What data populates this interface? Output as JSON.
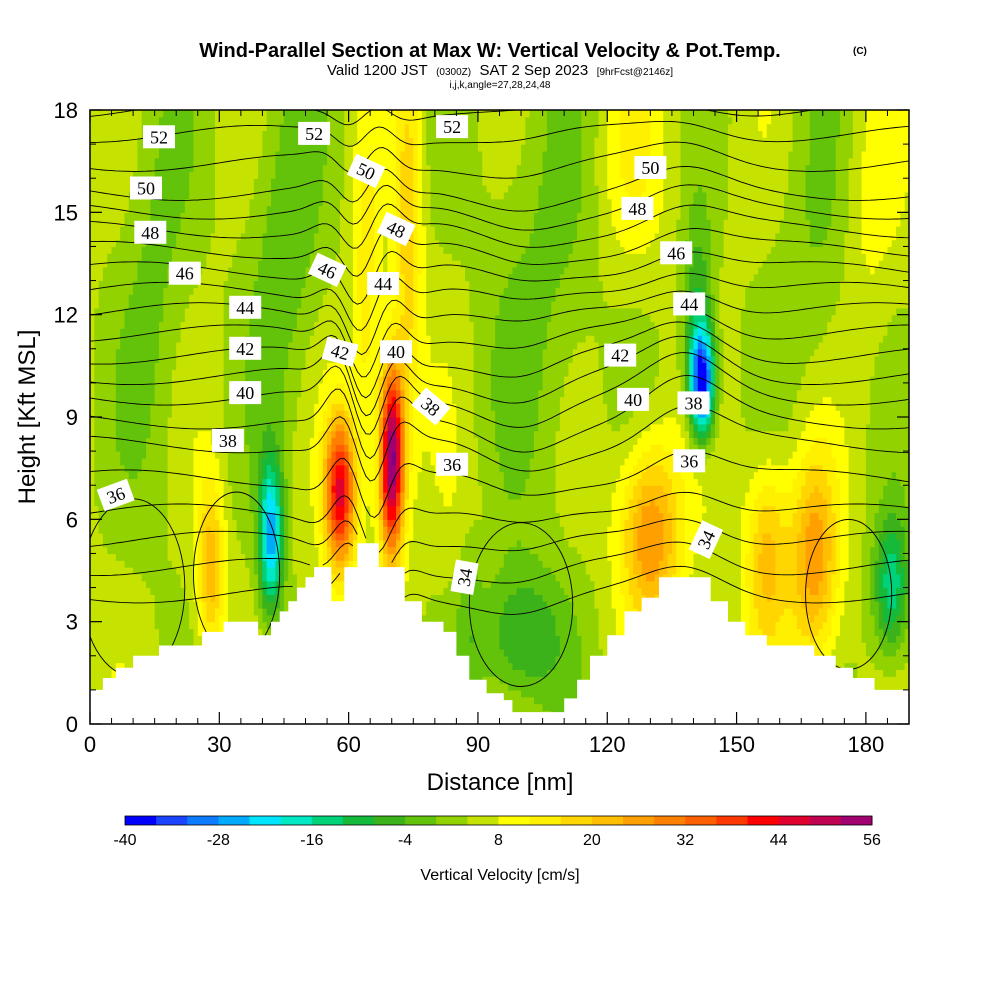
{
  "header": {
    "title": "Wind-Parallel Section at Max W: Vertical Velocity & Pot.Temp.",
    "title_mark": "(C)",
    "subtitle_a": "Valid 1200 JST",
    "subtitle_b": "(0300Z)",
    "subtitle_c": "SAT 2 Sep 2023",
    "subtitle_d": "[9hrFcst@2146z]",
    "subtitle2": "i,j,k,angle=27,28,24,48"
  },
  "chart_data": {
    "type": "heatmap",
    "description_series": "vertical velocity shading with potential temperature contours over terrain",
    "xlabel": "Distance [nm]",
    "ylabel": "Height [Kft MSL]",
    "xlim": [
      0,
      190
    ],
    "ylim": [
      0,
      18
    ],
    "xticks": [
      0,
      30,
      60,
      90,
      120,
      150,
      180
    ],
    "yticks": [
      0,
      3,
      6,
      9,
      12,
      15,
      18
    ],
    "colorbar": {
      "label": "Vertical Velocity [cm/s]",
      "min": -40,
      "max": 56,
      "step": 4,
      "tick_labels": [
        -40,
        -28,
        -16,
        -4,
        8,
        20,
        32,
        44,
        56
      ],
      "colors": [
        "#0000ff",
        "#1a44ff",
        "#0d7bff",
        "#00aaff",
        "#00e5ff",
        "#00e8c4",
        "#00d27a",
        "#16ba3a",
        "#3cb21a",
        "#63c30a",
        "#92d200",
        "#c6e200",
        "#ffff00",
        "#fff000",
        "#ffd600",
        "#ffbe00",
        "#ffa000",
        "#ff8000",
        "#ff6000",
        "#ff3800",
        "#ff0000",
        "#e00030",
        "#c00050",
        "#a00070",
        "#800080"
      ]
    },
    "terrain_kft": [
      [
        0,
        1.0
      ],
      [
        3,
        1.0
      ],
      [
        3,
        1.35
      ],
      [
        6,
        1.35
      ],
      [
        6,
        1.65
      ],
      [
        10,
        1.65
      ],
      [
        10,
        2.0
      ],
      [
        16,
        2.0
      ],
      [
        16,
        2.3
      ],
      [
        26,
        2.3
      ],
      [
        26,
        2.7
      ],
      [
        31,
        2.7
      ],
      [
        31,
        3.0
      ],
      [
        39,
        3.0
      ],
      [
        39,
        2.6
      ],
      [
        42,
        2.6
      ],
      [
        42,
        3.0
      ],
      [
        44,
        3.0
      ],
      [
        44,
        3.3
      ],
      [
        46,
        3.3
      ],
      [
        46,
        3.6
      ],
      [
        48,
        3.6
      ],
      [
        48,
        4.0
      ],
      [
        50,
        4.0
      ],
      [
        50,
        4.3
      ],
      [
        52,
        4.3
      ],
      [
        52,
        4.6
      ],
      [
        56,
        4.6
      ],
      [
        56,
        3.6
      ],
      [
        59,
        3.6
      ],
      [
        59,
        4.6
      ],
      [
        62,
        4.6
      ],
      [
        62,
        5.3
      ],
      [
        67,
        5.3
      ],
      [
        67,
        4.6
      ],
      [
        73,
        4.6
      ],
      [
        73,
        3.6
      ],
      [
        77,
        3.6
      ],
      [
        77,
        3.0
      ],
      [
        82,
        3.0
      ],
      [
        82,
        2.7
      ],
      [
        85,
        2.7
      ],
      [
        85,
        2.0
      ],
      [
        88,
        2.0
      ],
      [
        88,
        1.3
      ],
      [
        92,
        1.3
      ],
      [
        92,
        0.9
      ],
      [
        96,
        0.9
      ],
      [
        96,
        0.7
      ],
      [
        98,
        0.7
      ],
      [
        98,
        0.35
      ],
      [
        110,
        0.35
      ],
      [
        110,
        0.75
      ],
      [
        113,
        0.75
      ],
      [
        113,
        1.3
      ],
      [
        116,
        1.3
      ],
      [
        116,
        2.0
      ],
      [
        120,
        2.0
      ],
      [
        120,
        2.6
      ],
      [
        124,
        2.6
      ],
      [
        124,
        3.3
      ],
      [
        128,
        3.3
      ],
      [
        128,
        3.7
      ],
      [
        132,
        3.7
      ],
      [
        132,
        4.3
      ],
      [
        144,
        4.3
      ],
      [
        144,
        3.6
      ],
      [
        148,
        3.6
      ],
      [
        148,
        3.0
      ],
      [
        152,
        3.0
      ],
      [
        152,
        2.6
      ],
      [
        157,
        2.6
      ],
      [
        157,
        2.3
      ],
      [
        168,
        2.3
      ],
      [
        168,
        2.0
      ],
      [
        173,
        2.0
      ],
      [
        173,
        1.65
      ],
      [
        177,
        1.65
      ],
      [
        177,
        1.35
      ],
      [
        182,
        1.35
      ],
      [
        182,
        1.0
      ],
      [
        190,
        1.0
      ]
    ],
    "w_field": {
      "base": 5,
      "features": [
        {
          "x": 58,
          "z": 6.8,
          "sx": 2.5,
          "sz": 1.6,
          "amp": 40
        },
        {
          "x": 70,
          "z": 7.8,
          "sx": 2.0,
          "sz": 2.0,
          "amp": 55
        },
        {
          "x": 74,
          "z": 14.5,
          "sx": 2.2,
          "sz": 4.0,
          "amp": 14
        },
        {
          "x": 64,
          "z": 12.0,
          "sx": 2.2,
          "sz": 3.5,
          "amp": 10
        },
        {
          "x": 42,
          "z": 5.5,
          "sx": 2.0,
          "sz": 1.6,
          "amp": -30
        },
        {
          "x": 28,
          "z": 4.6,
          "sx": 2.2,
          "sz": 1.8,
          "amp": 18
        },
        {
          "x": 142,
          "z": 10.0,
          "sx": 2.0,
          "sz": 1.1,
          "amp": -42
        },
        {
          "x": 141,
          "z": 12.0,
          "sx": 2.5,
          "sz": 2.0,
          "amp": -14
        },
        {
          "x": 130,
          "z": 5.6,
          "sx": 5.0,
          "sz": 1.9,
          "amp": 24
        },
        {
          "x": 168,
          "z": 4.8,
          "sx": 4.0,
          "sz": 2.2,
          "amp": 22
        },
        {
          "x": 157,
          "z": 5.0,
          "sx": 3.5,
          "sz": 2.0,
          "amp": 17
        },
        {
          "x": 186,
          "z": 4.0,
          "sx": 3.0,
          "sz": 1.5,
          "amp": -20
        },
        {
          "x": 100,
          "z": 2.5,
          "sx": 7.0,
          "sz": 1.5,
          "amp": -14
        },
        {
          "x": 88,
          "z": 4.5,
          "sx": 2.5,
          "sz": 2.5,
          "amp": -10
        },
        {
          "x": 88,
          "z": 5.5,
          "sx": 3.0,
          "sz": 2.0,
          "amp": 8
        },
        {
          "x": 45,
          "z": 14.0,
          "sx": 6.0,
          "sz": 4.0,
          "amp": -8
        },
        {
          "x": 15,
          "z": 13.0,
          "sx": 6.0,
          "sz": 5.0,
          "amp": -6
        },
        {
          "x": 105,
          "z": 13.0,
          "sx": 10.0,
          "sz": 5.0,
          "amp": -6
        },
        {
          "x": 170,
          "z": 14.0,
          "sx": 8.0,
          "sz": 4.0,
          "amp": -5
        },
        {
          "x": 180,
          "z": 15.0,
          "sx": 5.0,
          "sz": 3.0,
          "amp": 6
        },
        {
          "x": 125,
          "z": 16.5,
          "sx": 6.0,
          "sz": 2.5,
          "amp": 6
        }
      ]
    },
    "theta_contours": {
      "levels": [
        33,
        34,
        35,
        36,
        37,
        38,
        39,
        40,
        41,
        42,
        43,
        44,
        45,
        46,
        47,
        48,
        49,
        50,
        51,
        52,
        53,
        54
      ],
      "base_z": {
        "36": 6.2,
        "38": 8.2,
        "40": 9.6,
        "42": 10.8,
        "44": 12.1,
        "46": 13.3,
        "48": 14.5,
        "50": 15.6,
        "52": 17.3
      }
    },
    "contour_labels": [
      {
        "text": "52",
        "x": 16,
        "z": 17.2,
        "angle": 0
      },
      {
        "text": "52",
        "x": 52,
        "z": 17.3,
        "angle": 0
      },
      {
        "text": "52",
        "x": 84,
        "z": 17.5,
        "angle": 0
      },
      {
        "text": "50",
        "x": 13,
        "z": 15.7,
        "angle": 0
      },
      {
        "text": "50",
        "x": 64,
        "z": 16.2,
        "angle": 25
      },
      {
        "text": "50",
        "x": 130,
        "z": 16.3,
        "angle": 0
      },
      {
        "text": "48",
        "x": 14,
        "z": 14.4,
        "angle": 0
      },
      {
        "text": "48",
        "x": 71,
        "z": 14.5,
        "angle": 25
      },
      {
        "text": "48",
        "x": 127,
        "z": 15.1,
        "angle": 0
      },
      {
        "text": "46",
        "x": 22,
        "z": 13.2,
        "angle": 0
      },
      {
        "text": "46",
        "x": 55,
        "z": 13.3,
        "angle": 25
      },
      {
        "text": "46",
        "x": 136,
        "z": 13.8,
        "angle": 0
      },
      {
        "text": "44",
        "x": 36,
        "z": 12.2,
        "angle": 0
      },
      {
        "text": "44",
        "x": 68,
        "z": 12.9,
        "angle": 0
      },
      {
        "text": "44",
        "x": 139,
        "z": 12.3,
        "angle": 0
      },
      {
        "text": "42",
        "x": 36,
        "z": 11.0,
        "angle": 0
      },
      {
        "text": "42",
        "x": 58,
        "z": 10.9,
        "angle": 15
      },
      {
        "text": "42",
        "x": 123,
        "z": 10.8,
        "angle": 0
      },
      {
        "text": "40",
        "x": 36,
        "z": 9.7,
        "angle": 0
      },
      {
        "text": "40",
        "x": 71,
        "z": 10.9,
        "angle": 0
      },
      {
        "text": "40",
        "x": 126,
        "z": 9.5,
        "angle": 0
      },
      {
        "text": "38",
        "x": 32,
        "z": 8.3,
        "angle": 0
      },
      {
        "text": "38",
        "x": 79,
        "z": 9.3,
        "angle": 40
      },
      {
        "text": "38",
        "x": 140,
        "z": 9.4,
        "angle": 0
      },
      {
        "text": "36",
        "x": 6,
        "z": 6.7,
        "angle": -20
      },
      {
        "text": "36",
        "x": 84,
        "z": 7.6,
        "angle": 0
      },
      {
        "text": "36",
        "x": 139,
        "z": 7.7,
        "angle": 0
      },
      {
        "text": "34",
        "x": 87,
        "z": 4.3,
        "angle": -80
      },
      {
        "text": "34",
        "x": 143,
        "z": 5.4,
        "angle": -65
      }
    ]
  }
}
